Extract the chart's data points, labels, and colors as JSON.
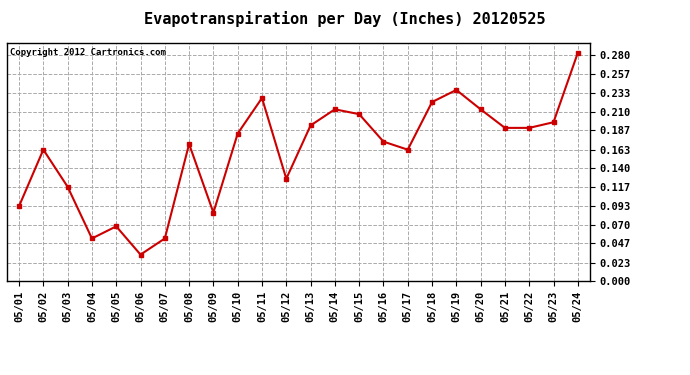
{
  "title": "Evapotranspiration per Day (Inches) 20120525",
  "copyright": "Copyright 2012 Cartronics.com",
  "dates": [
    "05/01",
    "05/02",
    "05/03",
    "05/04",
    "05/05",
    "05/06",
    "05/07",
    "05/08",
    "05/09",
    "05/10",
    "05/11",
    "05/12",
    "05/13",
    "05/14",
    "05/15",
    "05/16",
    "05/17",
    "05/18",
    "05/19",
    "05/20",
    "05/21",
    "05/22",
    "05/23",
    "05/24"
  ],
  "values": [
    0.093,
    0.163,
    0.117,
    0.053,
    0.068,
    0.033,
    0.053,
    0.17,
    0.085,
    0.183,
    0.227,
    0.127,
    0.193,
    0.213,
    0.207,
    0.173,
    0.163,
    0.222,
    0.237,
    0.213,
    0.19,
    0.19,
    0.197,
    0.283
  ],
  "line_color": "#cc0000",
  "marker": "s",
  "marker_size": 3,
  "ylim": [
    0.0,
    0.295
  ],
  "yticks": [
    0.0,
    0.023,
    0.047,
    0.07,
    0.093,
    0.117,
    0.14,
    0.163,
    0.187,
    0.21,
    0.233,
    0.257,
    0.28
  ],
  "grid_color": "#aaaaaa",
  "background_color": "#ffffff",
  "border_color": "#000000",
  "title_fontsize": 11,
  "copyright_fontsize": 6.5,
  "tick_fontsize": 7.5
}
